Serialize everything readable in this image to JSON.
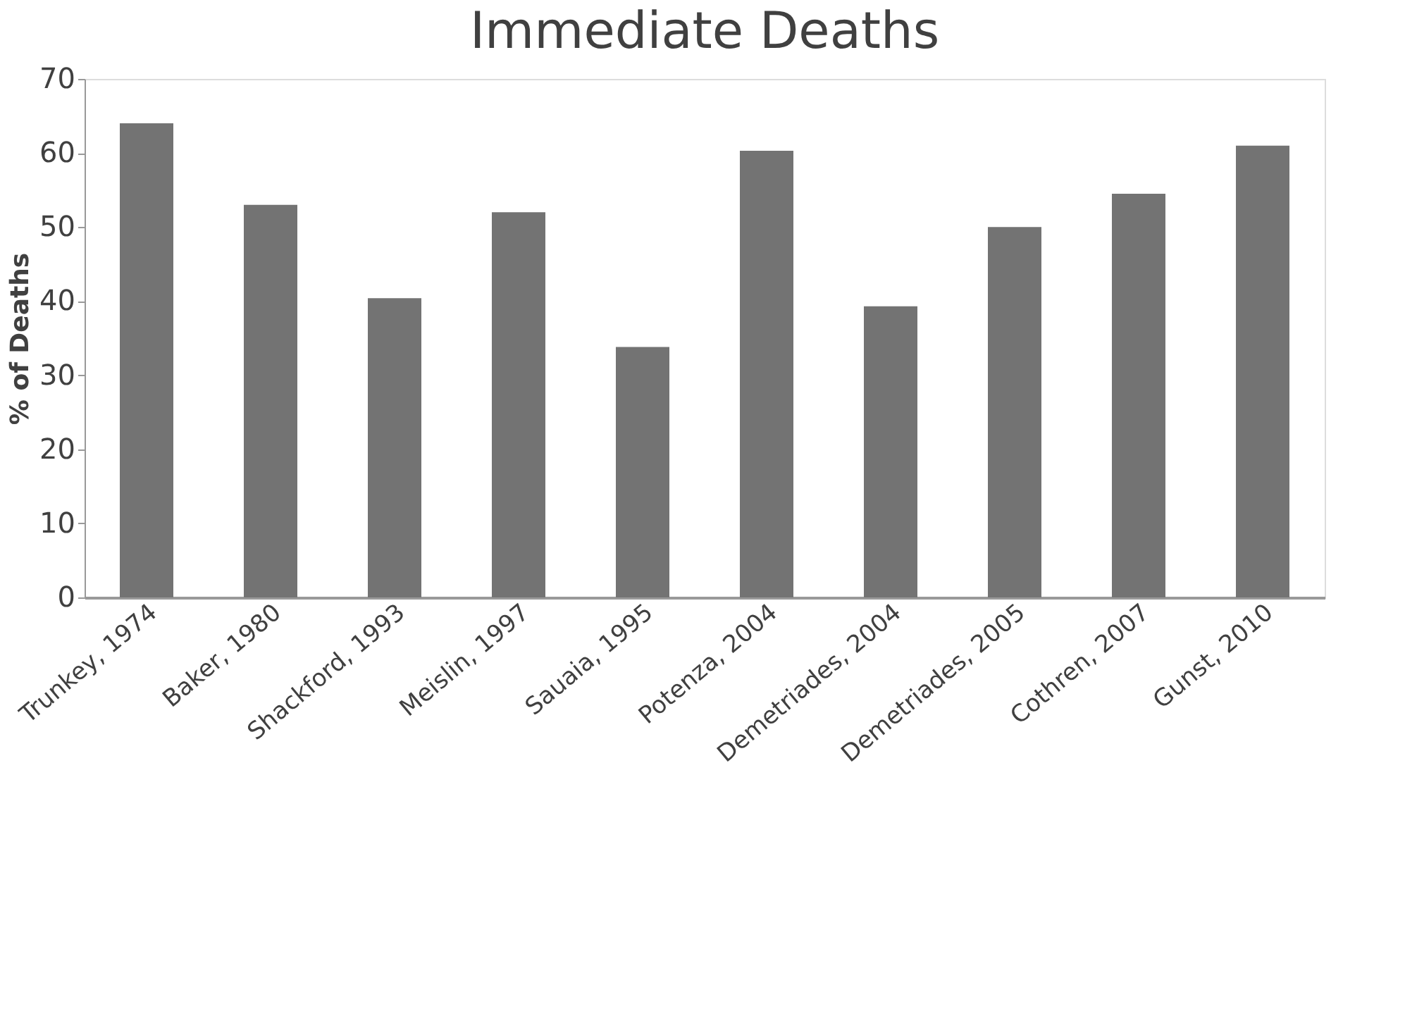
{
  "chart_data": {
    "type": "bar",
    "title": "Immediate Deaths",
    "ylabel": "% of Deaths",
    "categories": [
      "Trunkey, 1974",
      "Baker, 1980",
      "Shackford, 1993",
      "Meislin, 1997",
      "Sauaia, 1995",
      "Potenza, 2004",
      "Demetriades, 2004",
      "Demetriades, 2005",
      "Cothren, 2007",
      "Gunst, 2010"
    ],
    "values": [
      64,
      53,
      40.4,
      52,
      33.8,
      60.3,
      39.3,
      50,
      54.5,
      61
    ],
    "color": "#737373",
    "ylim": [
      0,
      70
    ],
    "yticks": [
      0,
      10,
      20,
      30,
      40,
      50,
      60,
      70
    ],
    "grid": false
  }
}
